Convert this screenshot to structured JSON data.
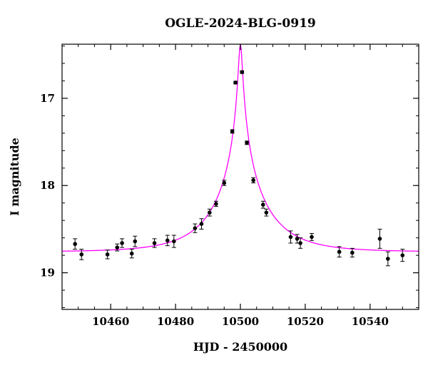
{
  "chart_data": {
    "type": "scatter",
    "title": "OGLE-2024-BLG-0919",
    "xlabel": "HJD - 2450000",
    "ylabel": "I magnitude",
    "xlim": [
      10445,
      10555
    ],
    "ylim": [
      19.42,
      16.38
    ],
    "y_inverted": true,
    "grid": false,
    "x_ticks": [
      10460,
      10480,
      10500,
      10520,
      10540
    ],
    "y_ticks": [
      17,
      18,
      19
    ],
    "x_minor_step": 5,
    "y_minor_step": 0.2,
    "colors": {
      "points": "#000000",
      "model": "#ff00ff",
      "axes": "#000000"
    },
    "series": [
      {
        "name": "observations",
        "kind": "errorbar",
        "points": [
          {
            "x": 10449.0,
            "y": 18.67,
            "err": 0.06
          },
          {
            "x": 10451.0,
            "y": 18.79,
            "err": 0.06
          },
          {
            "x": 10459.0,
            "y": 18.79,
            "err": 0.05
          },
          {
            "x": 10462.0,
            "y": 18.71,
            "err": 0.04
          },
          {
            "x": 10463.5,
            "y": 18.66,
            "err": 0.05
          },
          {
            "x": 10466.5,
            "y": 18.78,
            "err": 0.05
          },
          {
            "x": 10467.5,
            "y": 18.64,
            "err": 0.06
          },
          {
            "x": 10473.5,
            "y": 18.66,
            "err": 0.05
          },
          {
            "x": 10477.5,
            "y": 18.63,
            "err": 0.06
          },
          {
            "x": 10479.5,
            "y": 18.64,
            "err": 0.07
          },
          {
            "x": 10486.0,
            "y": 18.49,
            "err": 0.05
          },
          {
            "x": 10488.0,
            "y": 18.44,
            "err": 0.06
          },
          {
            "x": 10490.5,
            "y": 18.31,
            "err": 0.04
          },
          {
            "x": 10492.5,
            "y": 18.21,
            "err": 0.03
          },
          {
            "x": 10495.0,
            "y": 17.97,
            "err": 0.03
          },
          {
            "x": 10497.5,
            "y": 17.38,
            "err": 0.02
          },
          {
            "x": 10498.5,
            "y": 16.82,
            "err": 0.015
          },
          {
            "x": 10500.5,
            "y": 16.7,
            "err": 0.015
          },
          {
            "x": 10502.0,
            "y": 17.51,
            "err": 0.02
          },
          {
            "x": 10504.0,
            "y": 17.94,
            "err": 0.03
          },
          {
            "x": 10507.0,
            "y": 18.22,
            "err": 0.04
          },
          {
            "x": 10508.0,
            "y": 18.31,
            "err": 0.04
          },
          {
            "x": 10515.5,
            "y": 18.59,
            "err": 0.07
          },
          {
            "x": 10517.5,
            "y": 18.61,
            "err": 0.05
          },
          {
            "x": 10518.5,
            "y": 18.66,
            "err": 0.06
          },
          {
            "x": 10522.0,
            "y": 18.59,
            "err": 0.04
          },
          {
            "x": 10530.5,
            "y": 18.76,
            "err": 0.06
          },
          {
            "x": 10534.5,
            "y": 18.77,
            "err": 0.05
          },
          {
            "x": 10543.0,
            "y": 18.61,
            "err": 0.11
          },
          {
            "x": 10545.5,
            "y": 18.84,
            "err": 0.08
          },
          {
            "x": 10550.0,
            "y": 18.8,
            "err": 0.07
          }
        ]
      },
      {
        "name": "model",
        "kind": "line",
        "peak_x": 10500.0,
        "peak_y": 16.38,
        "baseline_y": 18.76,
        "x": [
          10445,
          10460,
          10470,
          10480,
          10485,
          10490,
          10493,
          10495,
          10497,
          10498,
          10499,
          10499.5,
          10500,
          10500.5,
          10501,
          10502,
          10503,
          10505,
          10507,
          10510,
          10515,
          10520,
          10530,
          10540,
          10555
        ],
        "y": [
          18.75,
          18.73,
          18.7,
          18.62,
          18.52,
          18.36,
          18.14,
          17.94,
          17.56,
          17.22,
          16.82,
          16.58,
          16.38,
          16.58,
          16.82,
          17.22,
          17.56,
          17.94,
          18.2,
          18.36,
          18.55,
          18.64,
          18.71,
          18.74,
          18.75
        ]
      }
    ]
  }
}
